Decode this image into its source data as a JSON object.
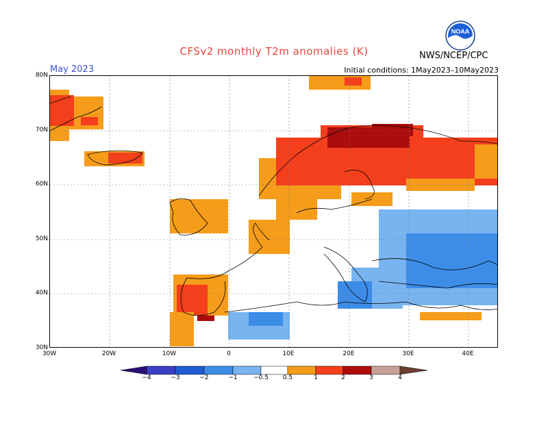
{
  "header": {
    "title": "CFSv2 monthly T2m anomalies (K)",
    "month": "May 2023",
    "initial_conditions": "Initial conditions: 1May2023–10May2023",
    "agency": "NWS/NCEP/CPC",
    "logo_text": "NOAA"
  },
  "axes": {
    "lat_labels": [
      "80N",
      "70N",
      "60N",
      "50N",
      "40N",
      "30N"
    ],
    "lon_labels": [
      "30W",
      "20W",
      "10W",
      "0",
      "10E",
      "20E",
      "30E",
      "40E"
    ]
  },
  "colorbar": {
    "labels": [
      "−4",
      "−3",
      "−2",
      "−1",
      "−0.5",
      "0.5",
      "1",
      "2",
      "3",
      "4"
    ],
    "colors": {
      "lt_-4": "#2a0f78",
      "-4_-3": "#3b3fc6",
      "-3_-2": "#1f5bd1",
      "-2_-1": "#3d8de8",
      "-1_-0.5": "#78b4f0",
      "0.5_1": "#f59c1a",
      "1_2": "#f33f1c",
      "2_3": "#ab0c0c",
      "3_4": "#c9a097",
      "gt_4": "#6d4032"
    }
  },
  "map_region": {
    "lon_range": [
      -30,
      45
    ],
    "lat_range": [
      30,
      80
    ]
  }
}
